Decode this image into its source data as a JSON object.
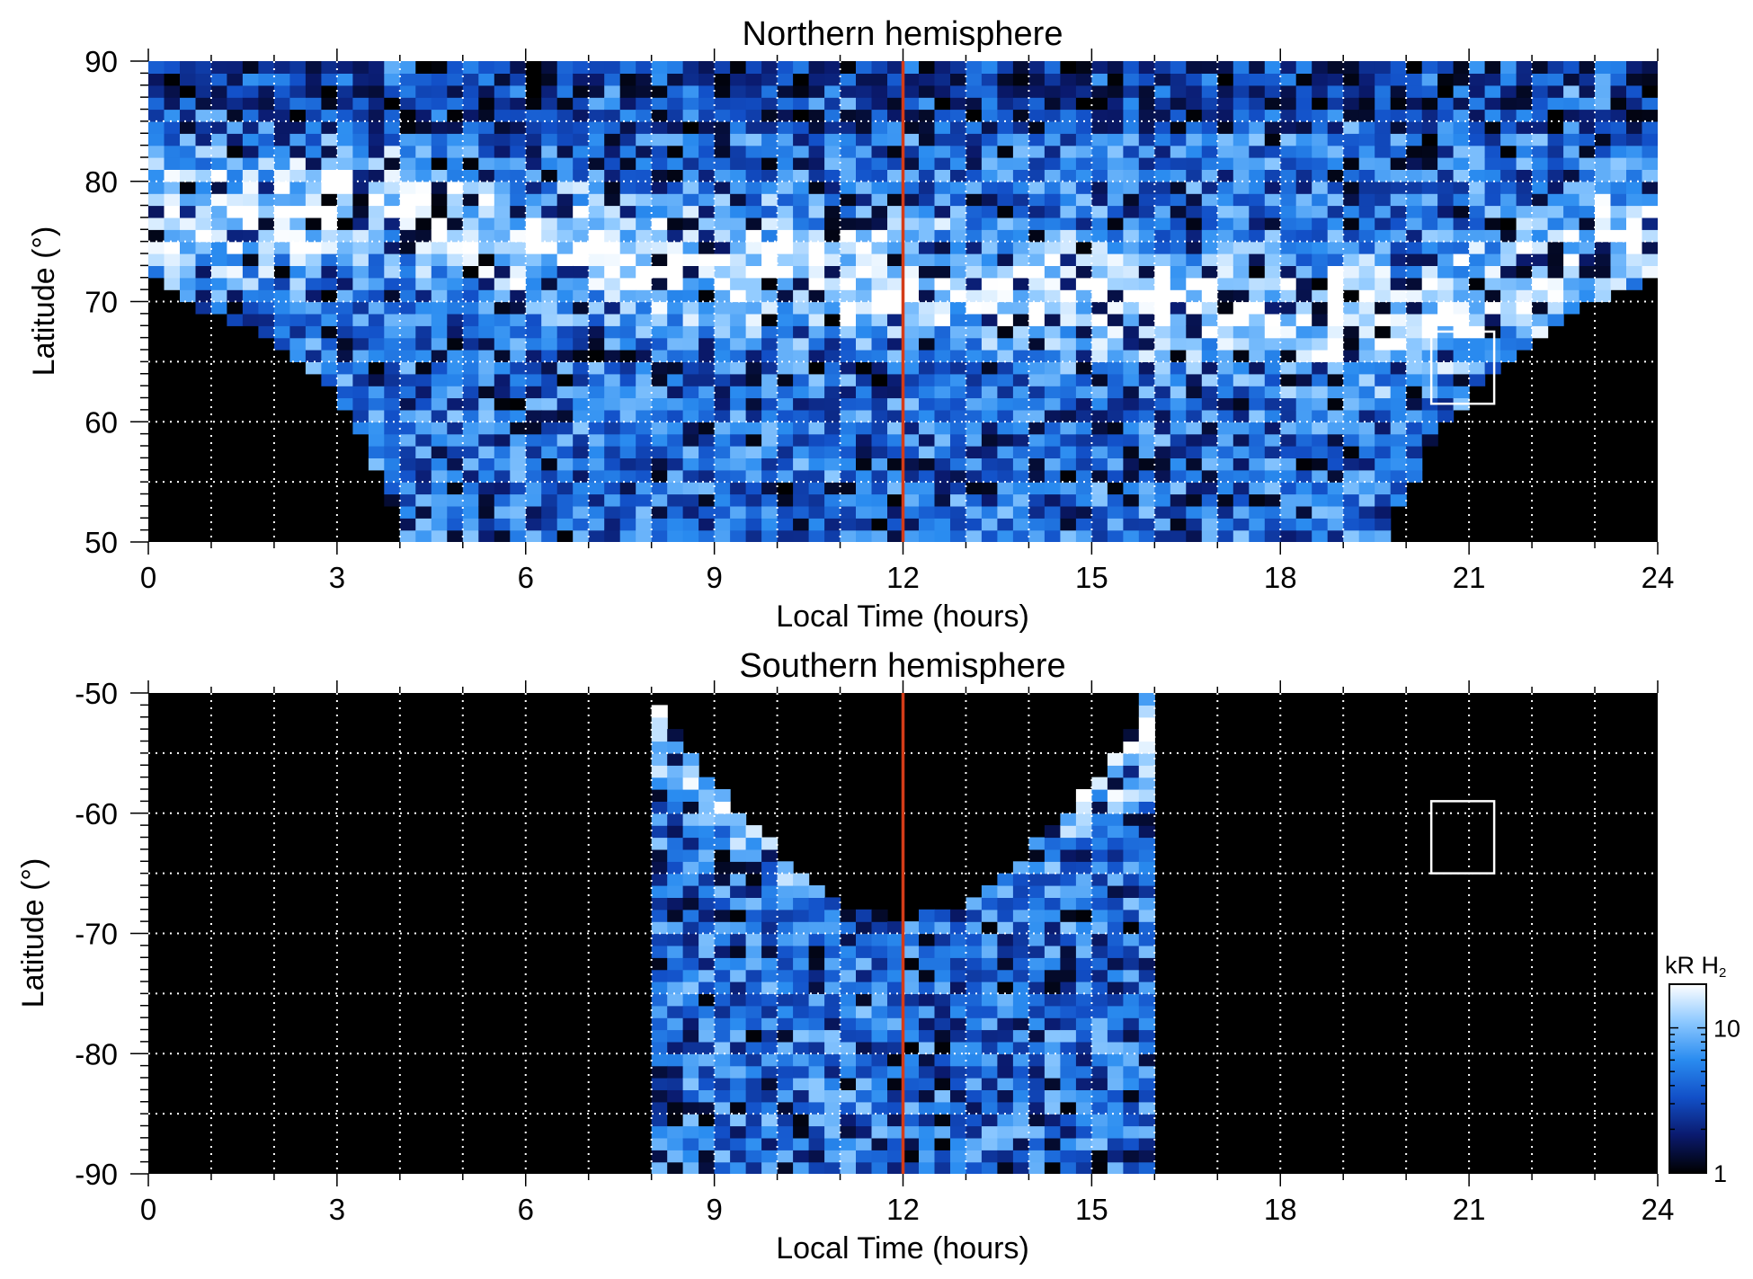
{
  "chart_data": [
    {
      "type": "heatmap",
      "title": "Northern hemisphere",
      "xlabel": "Local Time (hours)",
      "ylabel": "Latitude (°)",
      "xlim": [
        0,
        24
      ],
      "ylim": [
        50,
        90
      ],
      "xticks": [
        "0",
        "3",
        "6",
        "9",
        "12",
        "15",
        "18",
        "21",
        "24"
      ],
      "yticks": [
        "50",
        "60",
        "70",
        "80",
        "90"
      ],
      "grid": true,
      "reference_line": {
        "x": 12,
        "color": "#d43c18"
      },
      "box": {
        "x": [
          20.4,
          21.4
        ],
        "y": [
          61.5,
          67.5
        ],
        "color": "#ffffff"
      },
      "coverage": [
        {
          "lt": 0.0,
          "min_lat": 72
        },
        {
          "lt": 0.6,
          "min_lat": 70
        },
        {
          "lt": 1.5,
          "min_lat": 68
        },
        {
          "lt": 2.5,
          "min_lat": 65
        },
        {
          "lt": 3.3,
          "min_lat": 60
        },
        {
          "lt": 3.8,
          "min_lat": 54
        },
        {
          "lt": 4.1,
          "min_lat": 50
        },
        {
          "lt": 19.6,
          "min_lat": 50
        },
        {
          "lt": 20.0,
          "min_lat": 54
        },
        {
          "lt": 20.4,
          "min_lat": 58
        },
        {
          "lt": 21.0,
          "min_lat": 62
        },
        {
          "lt": 21.8,
          "min_lat": 66
        },
        {
          "lt": 22.6,
          "min_lat": 69
        },
        {
          "lt": 23.4,
          "min_lat": 71
        },
        {
          "lt": 24.0,
          "min_lat": 72
        }
      ],
      "auroral_oval": [
        {
          "lt": 0,
          "lat": 76
        },
        {
          "lt": 2,
          "lat": 77.5
        },
        {
          "lt": 4,
          "lat": 78
        },
        {
          "lt": 5.5,
          "lat": 75
        },
        {
          "lt": 20,
          "lat": 68
        },
        {
          "lt": 21.5,
          "lat": 71
        },
        {
          "lt": 23,
          "lat": 74
        },
        {
          "lt": 24,
          "lat": 76
        }
      ]
    },
    {
      "type": "heatmap",
      "title": "Southern hemisphere",
      "xlabel": "Local Time (hours)",
      "ylabel": "Latitude (°)",
      "xlim": [
        0,
        24
      ],
      "ylim": [
        -90,
        -50
      ],
      "xticks": [
        "0",
        "3",
        "6",
        "9",
        "12",
        "15",
        "18",
        "21",
        "24"
      ],
      "yticks": [
        "-90",
        "-80",
        "-70",
        "-60",
        "-50"
      ],
      "grid": true,
      "reference_line": {
        "x": 12,
        "color": "#d43c18"
      },
      "box": {
        "x": [
          20.4,
          21.4
        ],
        "y": [
          -65,
          -59
        ],
        "color": "#ffffff"
      },
      "coverage": [
        {
          "lt": 8.0,
          "max_lat": -50
        },
        {
          "lt": 8.6,
          "max_lat": -55
        },
        {
          "lt": 9.3,
          "max_lat": -59.5
        },
        {
          "lt": 10.2,
          "max_lat": -64
        },
        {
          "lt": 11.1,
          "max_lat": -67.5
        },
        {
          "lt": 12.0,
          "max_lat": -69
        },
        {
          "lt": 12.9,
          "max_lat": -67.5
        },
        {
          "lt": 13.8,
          "max_lat": -64
        },
        {
          "lt": 14.7,
          "max_lat": -59.5
        },
        {
          "lt": 15.4,
          "max_lat": -55
        },
        {
          "lt": 15.9,
          "max_lat": -50
        }
      ],
      "auroral_oval": [
        {
          "lt": 8,
          "lat": -52
        },
        {
          "lt": 10,
          "lat": -60
        },
        {
          "lt": 12,
          "lat": -62
        },
        {
          "lt": 14,
          "lat": -60
        },
        {
          "lt": 16,
          "lat": -52
        }
      ]
    }
  ],
  "colorbar": {
    "label": "kR H",
    "label_subscript": "2",
    "scale": "log",
    "range": [
      1,
      20
    ],
    "ticks": [
      "10",
      "1"
    ],
    "colors": [
      "#000000",
      "#0a1a6e",
      "#1250c8",
      "#2a8cf0",
      "#8cc8ff",
      "#ffffff"
    ]
  }
}
